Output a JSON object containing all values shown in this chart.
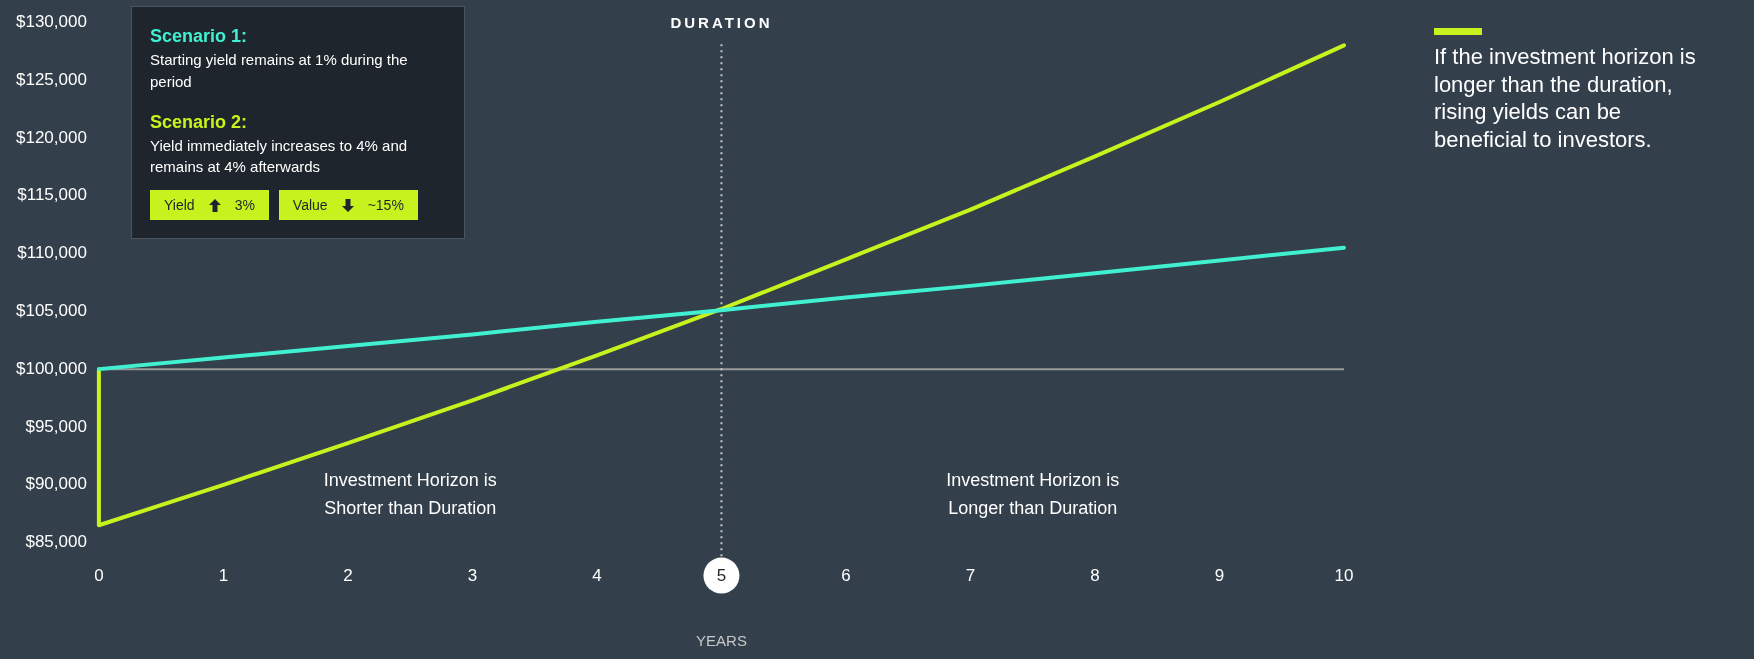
{
  "chart_data": {
    "type": "line",
    "xlabel": "YEARS",
    "xlim": [
      0,
      10
    ],
    "xticks": [
      0,
      1,
      2,
      3,
      4,
      5,
      6,
      7,
      8,
      9,
      10
    ],
    "ylim": [
      85000,
      130000
    ],
    "yticks": [
      {
        "value": 85000,
        "label": "$85,000"
      },
      {
        "value": 90000,
        "label": "$90,000"
      },
      {
        "value": 95000,
        "label": "$95,000"
      },
      {
        "value": 100000,
        "label": "$100,000"
      },
      {
        "value": 105000,
        "label": "$105,000"
      },
      {
        "value": 110000,
        "label": "$110,000"
      },
      {
        "value": 115000,
        "label": "$115,000"
      },
      {
        "value": 120000,
        "label": "$120,000"
      },
      {
        "value": 125000,
        "label": "$125,000"
      },
      {
        "value": 130000,
        "label": "$130,000"
      }
    ],
    "series": [
      {
        "name": "Scenario 1:",
        "color": "#40f0d0",
        "x": [
          0,
          1,
          2,
          3,
          4,
          5,
          6,
          7,
          8,
          9,
          10
        ],
        "values": [
          100000,
          101000,
          102000,
          103000,
          104100,
          105100,
          106200,
          107200,
          108300,
          109400,
          110500
        ]
      },
      {
        "name": "Scenario 2:",
        "color": "#c8f21e",
        "x": [
          0,
          0,
          1,
          2,
          3,
          4,
          5,
          6,
          7,
          8,
          9,
          10
        ],
        "values": [
          100000,
          86500,
          90000,
          93600,
          97300,
          101200,
          105200,
          109500,
          113800,
          118400,
          123100,
          128000
        ]
      }
    ],
    "ref_lines": [
      {
        "axis": "y",
        "value": 100000,
        "color": "#9a9a9a",
        "line_style": "solid"
      },
      {
        "axis": "x",
        "value": 5,
        "label": "DURATION",
        "color": "#c8c8c8",
        "line_style": "dotted"
      }
    ],
    "annotations": [
      "Starting yield remains at 1% during the period",
      "Yield immediately increases to 4% and remains at 4% afterwards",
      "Yield",
      "3%",
      "Value",
      "~15%",
      "If the investment horizon is longer than the duration, rising yields can be beneficial to investors.",
      "Investment Horizon is Shorter than Duration",
      "Investment Horizon is Longer than Duration"
    ],
    "grid": false,
    "legend": "top left",
    "marker": "none",
    "line_style": "solid"
  }
}
